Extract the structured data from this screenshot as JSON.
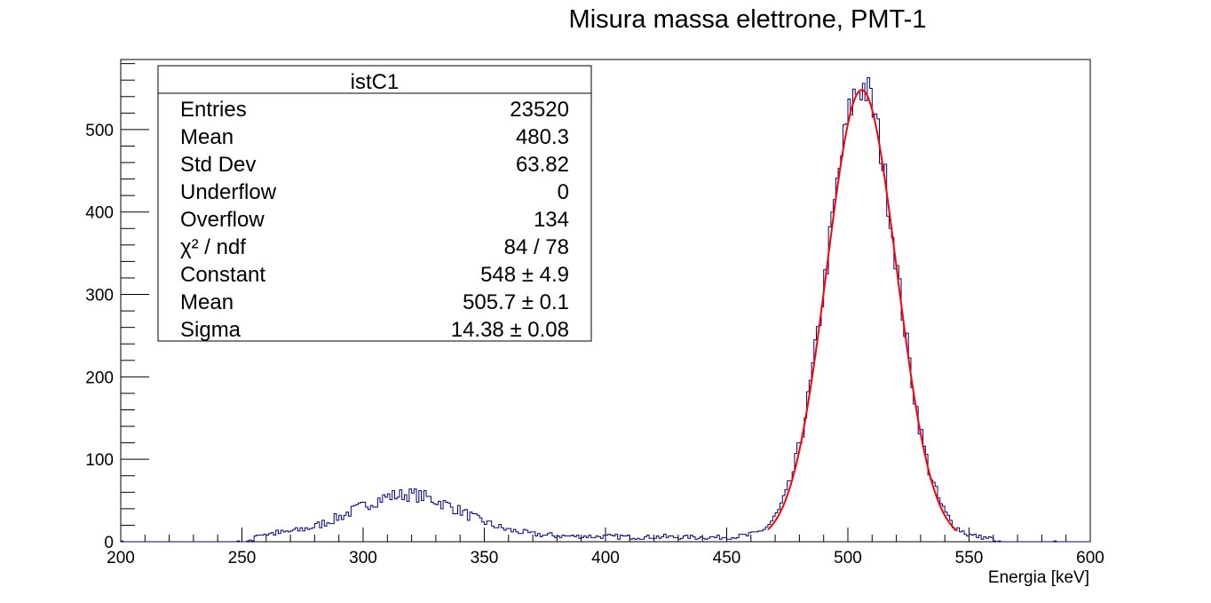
{
  "chart_data": {
    "type": "histogram",
    "title": "Misura massa elettrone, PMT-1",
    "xlabel": "Energia [keV]",
    "ylabel": "",
    "xlim": [
      200,
      600
    ],
    "ylim": [
      0,
      585
    ],
    "x_ticks": [
      200,
      250,
      300,
      350,
      400,
      450,
      500,
      550,
      600
    ],
    "y_ticks": [
      0,
      100,
      200,
      300,
      400,
      500
    ],
    "grid": false,
    "bin_width": 1,
    "series": [
      {
        "kind": "histogram",
        "color": "#000080",
        "peaks": [
          {
            "mean": 505.7,
            "sigma": 14.38,
            "constant": 548
          },
          {
            "mean": 318,
            "sigma": 22,
            "constant": 50
          }
        ],
        "baseline": 8
      },
      {
        "kind": "gaussian-fit",
        "color": "#ff0000",
        "constant": 548,
        "mean": 505.7,
        "sigma": 14.38,
        "range": [
          467,
          545
        ]
      }
    ],
    "stats_box": {
      "title": "istC1",
      "rows": [
        {
          "label": "Entries",
          "value": "23520"
        },
        {
          "label": "Mean",
          "value": "480.3"
        },
        {
          "label": "Std Dev",
          "value": "63.82"
        },
        {
          "label": "Underflow",
          "value": "0"
        },
        {
          "label": "Overflow",
          "value": "134"
        },
        {
          "label": "χ² / ndf",
          "value": "84 / 78"
        },
        {
          "label": "Constant",
          "value": "548 ± 4.9"
        },
        {
          "label": "Mean",
          "value": "505.7 ± 0.1"
        },
        {
          "label": "Sigma",
          "value": "14.38 ± 0.08"
        }
      ]
    }
  }
}
